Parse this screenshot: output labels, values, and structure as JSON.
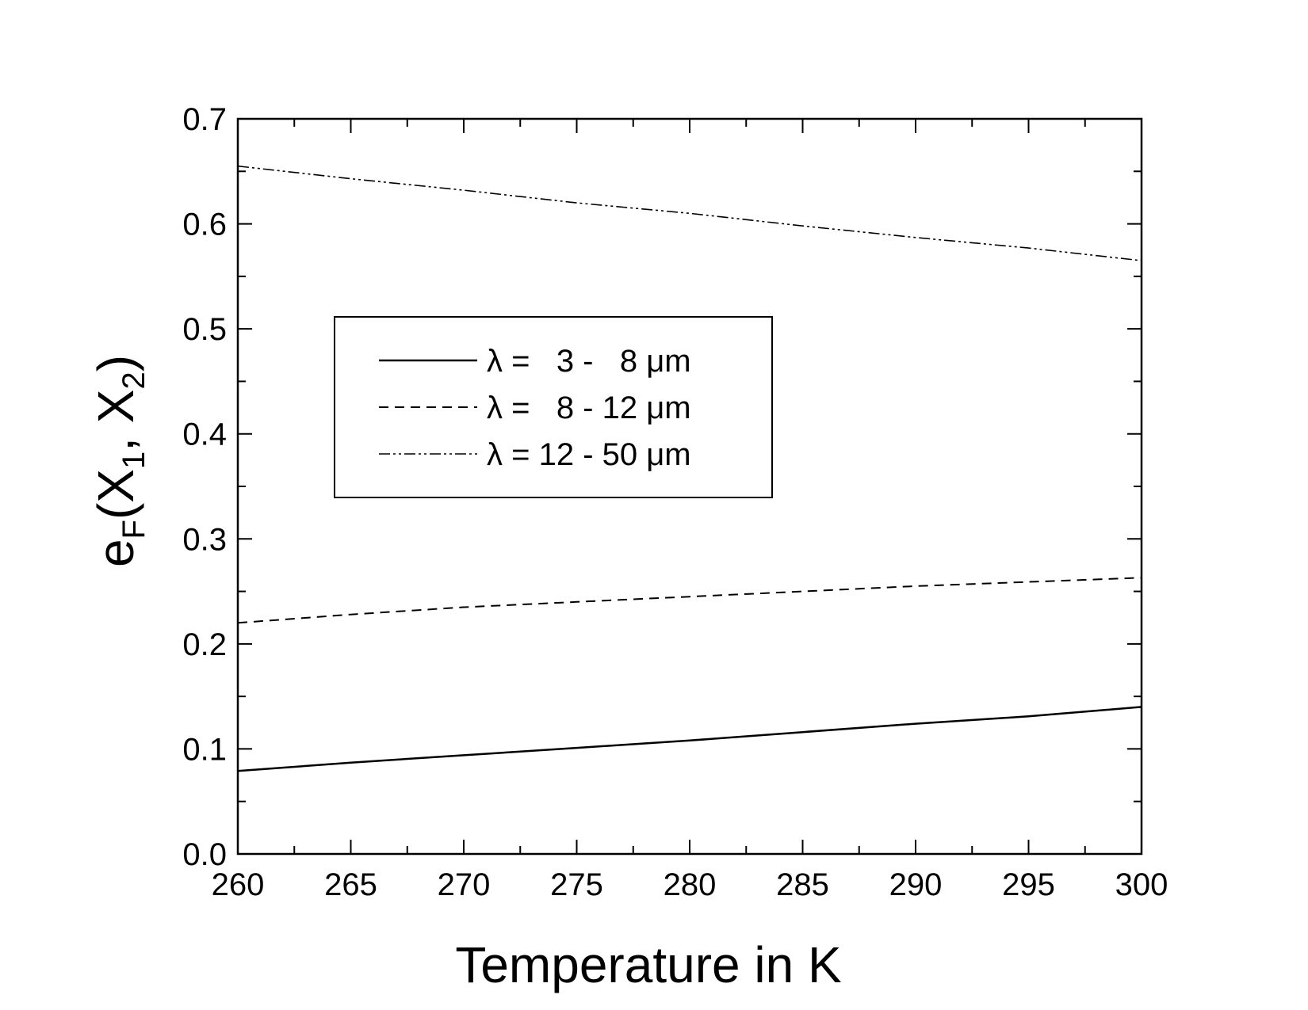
{
  "chart_data": {
    "type": "line",
    "xlabel": "Temperature in K",
    "ylabel": {
      "base": "e",
      "base_sub": "F",
      "open": "(X",
      "sub1": "1",
      "mid": ", X",
      "sub2": "2",
      "close": ")"
    },
    "xlim": [
      260,
      300
    ],
    "ylim": [
      0.0,
      0.7
    ],
    "x_ticks": [
      "260",
      "265",
      "270",
      "275",
      "280",
      "285",
      "290",
      "295",
      "300"
    ],
    "y_ticks": [
      "0.0",
      "0.1",
      "0.2",
      "0.3",
      "0.4",
      "0.5",
      "0.6",
      "0.7"
    ],
    "grid": false,
    "legend_position": "upper-left",
    "x": [
      260,
      265,
      270,
      275,
      280,
      285,
      290,
      295,
      300
    ],
    "series": [
      {
        "name": "λ =   3 -   8 μm",
        "style": "solid",
        "values": [
          0.079,
          0.087,
          0.094,
          0.101,
          0.108,
          0.116,
          0.124,
          0.131,
          0.14
        ]
      },
      {
        "name": "λ =   8 - 12 μm",
        "style": "dashed",
        "values": [
          0.22,
          0.228,
          0.235,
          0.24,
          0.245,
          0.25,
          0.255,
          0.259,
          0.263
        ]
      },
      {
        "name": "λ = 12 - 50 μm",
        "style": "dashdotdot",
        "values": [
          0.655,
          0.643,
          0.632,
          0.62,
          0.61,
          0.598,
          0.587,
          0.577,
          0.565
        ]
      }
    ]
  }
}
